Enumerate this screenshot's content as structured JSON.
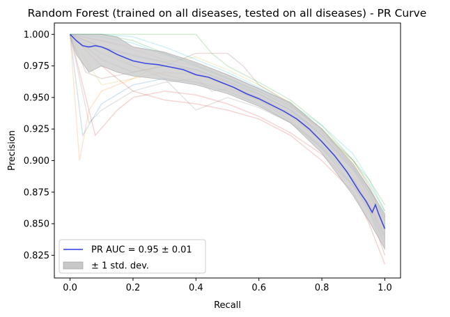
{
  "chart_data": {
    "type": "line",
    "title": "Random Forest (trained on all diseases, tested on all diseases) -  PR Curve",
    "xlabel": "Recall",
    "ylabel": "Precision",
    "xlim": [
      -0.05,
      1.05
    ],
    "ylim": [
      0.807,
      1.009
    ],
    "xticks": [
      0.0,
      0.2,
      0.4,
      0.6,
      0.8,
      1.0
    ],
    "xtick_labels": [
      "0.0",
      "0.2",
      "0.4",
      "0.6",
      "0.8",
      "1.0"
    ],
    "yticks": [
      0.825,
      0.85,
      0.875,
      0.9,
      0.925,
      0.95,
      0.975,
      1.0
    ],
    "ytick_labels": [
      "0.825",
      "0.850",
      "0.875",
      "0.900",
      "0.925",
      "0.950",
      "0.975",
      "1.000"
    ],
    "grid": false,
    "legend_position": "lower-left",
    "legend": [
      {
        "label": "PR AUC = 0.95 ± 0.01",
        "kind": "line",
        "color": "#2b3be0"
      },
      {
        "label": "± 1 std. dev.",
        "kind": "band",
        "color": "#c8c8c8"
      }
    ],
    "mean_curve": {
      "name": "PR AUC = 0.95 ± 0.01",
      "color": "#2b3be0",
      "x": [
        0.0,
        0.02,
        0.04,
        0.06,
        0.08,
        0.1,
        0.12,
        0.15,
        0.18,
        0.2,
        0.24,
        0.28,
        0.32,
        0.36,
        0.4,
        0.44,
        0.48,
        0.52,
        0.56,
        0.6,
        0.64,
        0.68,
        0.72,
        0.76,
        0.8,
        0.84,
        0.88,
        0.9,
        0.92,
        0.94,
        0.96,
        0.97,
        0.98,
        0.99,
        1.0
      ],
      "y": [
        1.0,
        0.995,
        0.991,
        0.99,
        0.991,
        0.99,
        0.988,
        0.984,
        0.981,
        0.979,
        0.977,
        0.976,
        0.974,
        0.972,
        0.968,
        0.966,
        0.962,
        0.958,
        0.953,
        0.949,
        0.944,
        0.939,
        0.933,
        0.925,
        0.915,
        0.904,
        0.891,
        0.883,
        0.875,
        0.868,
        0.859,
        0.865,
        0.858,
        0.852,
        0.846
      ]
    },
    "std_band": {
      "name": "± 1 std. dev.",
      "color": "#c8c8c8",
      "x": [
        0.0,
        0.02,
        0.04,
        0.06,
        0.1,
        0.15,
        0.2,
        0.3,
        0.4,
        0.5,
        0.6,
        0.7,
        0.8,
        0.9,
        0.95,
        1.0
      ],
      "lower": [
        0.999,
        0.984,
        0.977,
        0.97,
        0.975,
        0.97,
        0.967,
        0.964,
        0.96,
        0.953,
        0.943,
        0.93,
        0.906,
        0.872,
        0.852,
        0.83
      ],
      "upper": [
        1.0,
        1.0,
        1.0,
        1.0,
        1.0,
        0.998,
        0.99,
        0.986,
        0.978,
        0.968,
        0.957,
        0.946,
        0.925,
        0.897,
        0.878,
        0.858
      ]
    },
    "fold_curves": [
      {
        "color": "#1f77b4",
        "x": [
          0.0,
          0.05,
          0.1,
          0.2,
          0.3,
          0.4,
          0.5,
          0.6,
          0.7,
          0.8,
          0.9,
          0.95,
          1.0
        ],
        "y": [
          1.0,
          0.995,
          0.99,
          0.983,
          0.978,
          0.972,
          0.963,
          0.953,
          0.94,
          0.92,
          0.893,
          0.875,
          0.848
        ]
      },
      {
        "color": "#ff7f0e",
        "x": [
          0.0,
          0.03,
          0.06,
          0.1,
          0.2,
          0.3,
          0.4,
          0.5,
          0.6,
          0.7,
          0.8,
          0.9,
          0.95,
          1.0
        ],
        "y": [
          1.0,
          0.9,
          0.94,
          0.955,
          0.965,
          0.97,
          0.968,
          0.96,
          0.95,
          0.938,
          0.918,
          0.892,
          0.872,
          0.845
        ]
      },
      {
        "color": "#2ca02c",
        "x": [
          0.0,
          0.1,
          0.2,
          0.3,
          0.4,
          0.45,
          0.5,
          0.6,
          0.7,
          0.8,
          0.9,
          0.95,
          1.0
        ],
        "y": [
          1.0,
          1.0,
          1.0,
          1.0,
          1.0,
          0.985,
          0.975,
          0.962,
          0.948,
          0.928,
          0.9,
          0.882,
          0.86
        ]
      },
      {
        "color": "#d62728",
        "x": [
          0.0,
          0.04,
          0.08,
          0.15,
          0.2,
          0.3,
          0.4,
          0.5,
          0.6,
          0.7,
          0.8,
          0.9,
          0.95,
          1.0
        ],
        "y": [
          1.0,
          0.96,
          0.92,
          0.94,
          0.95,
          0.955,
          0.952,
          0.945,
          0.935,
          0.922,
          0.905,
          0.88,
          0.862,
          0.825
        ]
      },
      {
        "color": "#9467bd",
        "x": [
          0.0,
          0.1,
          0.2,
          0.3,
          0.4,
          0.5,
          0.6,
          0.7,
          0.8,
          0.85,
          0.9,
          0.95,
          1.0
        ],
        "y": [
          1.0,
          0.99,
          0.984,
          0.978,
          0.97,
          0.96,
          0.95,
          0.937,
          0.915,
          0.9,
          0.885,
          0.865,
          0.84
        ]
      },
      {
        "color": "#8c564b",
        "x": [
          0.0,
          0.05,
          0.1,
          0.2,
          0.3,
          0.4,
          0.5,
          0.6,
          0.7,
          0.8,
          0.9,
          0.95,
          1.0
        ],
        "y": [
          1.0,
          0.97,
          0.965,
          0.97,
          0.975,
          0.972,
          0.962,
          0.952,
          0.94,
          0.922,
          0.9,
          0.88,
          0.855
        ]
      },
      {
        "color": "#e377c2",
        "x": [
          0.0,
          0.1,
          0.2,
          0.3,
          0.4,
          0.5,
          0.6,
          0.7,
          0.8,
          0.9,
          0.95,
          1.0
        ],
        "y": [
          1.0,
          0.995,
          0.988,
          0.98,
          0.975,
          0.965,
          0.955,
          0.942,
          0.92,
          0.895,
          0.87,
          0.83
        ]
      },
      {
        "color": "#7f7f7f",
        "x": [
          0.0,
          0.06,
          0.1,
          0.2,
          0.3,
          0.4,
          0.45,
          0.5,
          0.6,
          0.7,
          0.8,
          0.9,
          0.95,
          1.0
        ],
        "y": [
          1.0,
          0.93,
          0.94,
          0.955,
          0.962,
          0.965,
          0.955,
          0.957,
          0.948,
          0.932,
          0.91,
          0.885,
          0.865,
          0.84
        ]
      },
      {
        "color": "#bcbd22",
        "x": [
          0.0,
          0.1,
          0.2,
          0.3,
          0.4,
          0.5,
          0.6,
          0.7,
          0.8,
          0.9,
          0.95,
          1.0
        ],
        "y": [
          1.0,
          0.96,
          0.965,
          0.978,
          0.982,
          0.972,
          0.96,
          0.946,
          0.925,
          0.898,
          0.878,
          0.852
        ]
      },
      {
        "color": "#17becf",
        "x": [
          0.0,
          0.1,
          0.2,
          0.3,
          0.4,
          0.5,
          0.6,
          0.7,
          0.8,
          0.9,
          0.95,
          1.0
        ],
        "y": [
          1.0,
          1.0,
          0.998,
          0.99,
          0.98,
          0.97,
          0.958,
          0.945,
          0.928,
          0.905,
          0.885,
          0.86
        ]
      },
      {
        "color": "#1f77b4",
        "x": [
          0.0,
          0.04,
          0.1,
          0.2,
          0.3,
          0.4,
          0.5,
          0.6,
          0.7,
          0.8,
          0.9,
          0.95,
          1.0
        ],
        "y": [
          1.0,
          0.92,
          0.945,
          0.96,
          0.965,
          0.962,
          0.955,
          0.945,
          0.93,
          0.91,
          0.88,
          0.86,
          0.835
        ]
      },
      {
        "color": "#ff7f0e",
        "x": [
          0.0,
          0.1,
          0.2,
          0.3,
          0.4,
          0.5,
          0.6,
          0.7,
          0.8,
          0.9,
          0.95,
          1.0
        ],
        "y": [
          1.0,
          0.99,
          0.975,
          0.968,
          0.962,
          0.958,
          0.948,
          0.935,
          0.915,
          0.888,
          0.868,
          0.842
        ]
      },
      {
        "color": "#2ca02c",
        "x": [
          0.0,
          0.05,
          0.1,
          0.2,
          0.3,
          0.4,
          0.5,
          0.6,
          0.7,
          0.8,
          0.9,
          0.95,
          1.0
        ],
        "y": [
          1.0,
          1.0,
          1.0,
          0.995,
          0.985,
          0.975,
          0.965,
          0.955,
          0.943,
          0.925,
          0.9,
          0.885,
          0.865
        ]
      },
      {
        "color": "#d62728",
        "x": [
          0.0,
          0.1,
          0.2,
          0.3,
          0.4,
          0.5,
          0.6,
          0.7,
          0.8,
          0.9,
          0.95,
          1.0
        ],
        "y": [
          1.0,
          0.975,
          0.955,
          0.948,
          0.945,
          0.94,
          0.933,
          0.92,
          0.9,
          0.875,
          0.85,
          0.818
        ]
      },
      {
        "color": "#9467bd",
        "x": [
          0.0,
          0.1,
          0.2,
          0.3,
          0.4,
          0.5,
          0.6,
          0.7,
          0.8,
          0.9,
          0.95,
          1.0
        ],
        "y": [
          1.0,
          0.995,
          0.99,
          0.985,
          0.977,
          0.968,
          0.957,
          0.944,
          0.925,
          0.895,
          0.875,
          0.848
        ]
      },
      {
        "color": "#8c564b",
        "x": [
          0.0,
          0.1,
          0.2,
          0.3,
          0.4,
          0.5,
          0.55,
          0.6,
          0.7,
          0.8,
          0.9,
          0.95,
          1.0
        ],
        "y": [
          1.0,
          0.98,
          0.97,
          0.975,
          0.985,
          0.985,
          0.975,
          0.96,
          0.945,
          0.923,
          0.895,
          0.878,
          0.852
        ]
      },
      {
        "color": "#7f7f7f",
        "x": [
          0.0,
          0.1,
          0.2,
          0.3,
          0.4,
          0.5,
          0.6,
          0.7,
          0.8,
          0.9,
          0.95,
          1.0
        ],
        "y": [
          1.0,
          0.985,
          0.975,
          0.965,
          0.94,
          0.95,
          0.942,
          0.93,
          0.912,
          0.885,
          0.862,
          0.838
        ]
      },
      {
        "color": "#17becf",
        "x": [
          0.0,
          0.1,
          0.2,
          0.3,
          0.4,
          0.5,
          0.6,
          0.7,
          0.8,
          0.9,
          0.95,
          1.0
        ],
        "y": [
          1.0,
          0.998,
          0.993,
          0.984,
          0.976,
          0.966,
          0.953,
          0.94,
          0.92,
          0.893,
          0.878,
          0.855
        ]
      }
    ]
  }
}
